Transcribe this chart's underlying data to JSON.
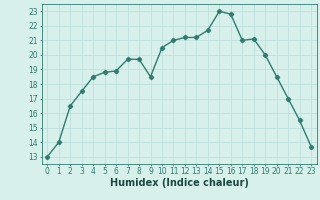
{
  "x": [
    0,
    1,
    2,
    3,
    4,
    5,
    6,
    7,
    8,
    9,
    10,
    11,
    12,
    13,
    14,
    15,
    16,
    17,
    18,
    19,
    20,
    21,
    22,
    23
  ],
  "y": [
    13,
    14,
    16.5,
    17.5,
    18.5,
    18.8,
    18.9,
    19.7,
    19.7,
    18.5,
    20.5,
    21.0,
    21.2,
    21.2,
    21.7,
    23.0,
    22.8,
    21.0,
    21.1,
    20.0,
    18.5,
    17.0,
    15.5,
    13.7
  ],
  "line_color": "#2e7d6e",
  "marker": "D",
  "markersize": 2.2,
  "linewidth": 1.0,
  "xlabel": "Humidex (Indice chaleur)",
  "xlim": [
    -0.5,
    23.5
  ],
  "ylim": [
    12.5,
    23.5
  ],
  "yticks": [
    13,
    14,
    15,
    16,
    17,
    18,
    19,
    20,
    21,
    22,
    23
  ],
  "xticks": [
    0,
    1,
    2,
    3,
    4,
    5,
    6,
    7,
    8,
    9,
    10,
    11,
    12,
    13,
    14,
    15,
    16,
    17,
    18,
    19,
    20,
    21,
    22,
    23
  ],
  "bg_color": "#d8f0ec",
  "grid_color": "#b8ddd8",
  "tick_color": "#2e7d6e",
  "label_color": "#1a4a40",
  "xlabel_fontsize": 7.0,
  "tick_fontsize": 5.5
}
